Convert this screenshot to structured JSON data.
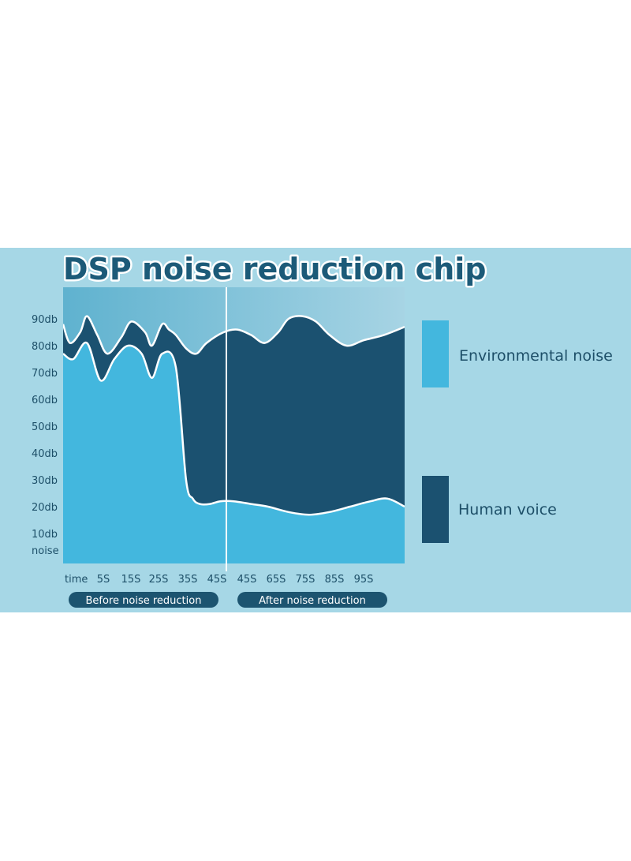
{
  "chart_data": {
    "type": "area",
    "title": "DSP noise reduction chip",
    "xlabel": "time",
    "ylabel": "",
    "y_tick_labels": [
      "noise",
      "10db",
      "20db",
      "30db",
      "40db",
      "50db",
      "60db",
      "70db",
      "80db",
      "90db"
    ],
    "x_tick_labels": [
      "5S",
      "15S",
      "25S",
      "35S",
      "45S",
      "45S",
      "65S",
      "75S",
      "85S",
      "95S"
    ],
    "ylim": [
      0,
      100
    ],
    "sections": [
      "Before noise reduction",
      "After noise reduction"
    ],
    "legend": {
      "position": "right",
      "items": [
        {
          "label": "Environmental noise",
          "color": "#43b7de"
        },
        {
          "label": "Human voice",
          "color": "#1b5170"
        }
      ]
    },
    "series": [
      {
        "name": "Environmental noise",
        "color": "#43b7de",
        "x": [
          0,
          3,
          7,
          11,
          15,
          19,
          23,
          26,
          29,
          33,
          36,
          38,
          40,
          43,
          46,
          50,
          55,
          60,
          66,
          72,
          78,
          84,
          90,
          95,
          100
        ],
        "values": [
          77,
          75,
          81,
          67,
          75,
          80,
          77,
          68,
          77,
          72,
          30,
          23,
          21,
          21,
          22,
          22,
          21,
          20,
          18,
          17,
          18,
          20,
          22,
          23,
          20
        ]
      },
      {
        "name": "Human voice",
        "color": "#1b5170",
        "x": [
          0,
          2,
          5,
          7,
          10,
          13,
          17,
          20,
          24,
          26,
          29,
          31,
          33,
          36,
          39,
          42,
          47,
          51,
          55,
          59,
          63,
          66,
          70,
          74,
          78,
          83,
          88,
          94,
          100
        ],
        "values": [
          88,
          81,
          85,
          91,
          84,
          77,
          83,
          89,
          85,
          80,
          88,
          86,
          84,
          79,
          77,
          81,
          85,
          86,
          84,
          81,
          85,
          90,
          91,
          89,
          84,
          80,
          82,
          84,
          87
        ]
      }
    ]
  }
}
